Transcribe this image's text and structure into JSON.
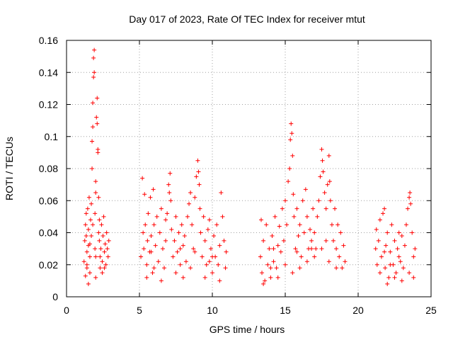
{
  "chart_data": {
    "type": "scatter",
    "title": "Day 017 of 2023, Rate Of TEC Index for receiver mtut",
    "xlabel": "GPS time / hours",
    "ylabel": "ROTI / TECUs",
    "xlim": [
      0,
      25
    ],
    "ylim": [
      0,
      0.16
    ],
    "xticks": [
      0,
      5,
      10,
      15,
      20,
      25
    ],
    "xtick_labels": [
      "0",
      "5",
      "10",
      "15",
      "20",
      "25"
    ],
    "yticks": [
      0,
      0.02,
      0.04,
      0.06,
      0.08,
      0.1,
      0.12,
      0.14,
      0.16
    ],
    "ytick_labels": [
      "0",
      "0.02",
      "0.04",
      "0.06",
      "0.08",
      "0.1",
      "0.12",
      "0.14",
      "0.16"
    ],
    "grid": true,
    "marker": "+",
    "color": "#ff0000",
    "series": [
      {
        "points": [
          [
            1.2,
            0.022
          ],
          [
            1.25,
            0.035
          ],
          [
            1.3,
            0.045
          ],
          [
            1.3,
            0.013
          ],
          [
            1.35,
            0.052
          ],
          [
            1.4,
            0.028
          ],
          [
            1.4,
            0.018
          ],
          [
            1.45,
            0.055
          ],
          [
            1.5,
            0.042
          ],
          [
            1.5,
            0.032
          ],
          [
            1.55,
            0.062
          ],
          [
            1.6,
            0.025
          ],
          [
            1.6,
            0.015
          ],
          [
            1.65,
            0.048
          ],
          [
            1.7,
            0.058
          ],
          [
            1.7,
            0.038
          ],
          [
            1.75,
            0.08
          ],
          [
            1.75,
            0.097
          ],
          [
            1.8,
            0.106
          ],
          [
            1.8,
            0.121
          ],
          [
            1.85,
            0.137
          ],
          [
            1.85,
            0.149
          ],
          [
            1.9,
            0.154
          ],
          [
            1.9,
            0.14
          ],
          [
            1.95,
            0.052
          ],
          [
            1.95,
            0.03
          ],
          [
            2.0,
            0.065
          ],
          [
            2.0,
            0.072
          ],
          [
            2.05,
            0.112
          ],
          [
            2.1,
            0.124
          ],
          [
            2.1,
            0.108
          ],
          [
            2.15,
            0.092
          ],
          [
            2.15,
            0.09
          ],
          [
            2.2,
            0.062
          ],
          [
            2.2,
            0.04
          ],
          [
            2.25,
            0.035
          ],
          [
            2.3,
            0.025
          ],
          [
            2.3,
            0.018
          ],
          [
            2.35,
            0.03
          ],
          [
            2.4,
            0.045
          ],
          [
            2.45,
            0.022
          ],
          [
            2.5,
            0.038
          ],
          [
            2.55,
            0.05
          ],
          [
            2.6,
            0.028
          ],
          [
            2.65,
            0.033
          ],
          [
            2.7,
            0.02
          ],
          [
            2.75,
            0.04
          ],
          [
            2.8,
            0.03
          ],
          [
            2.85,
            0.025
          ],
          [
            2.9,
            0.035
          ],
          [
            1.5,
            0.008
          ],
          [
            2.0,
            0.012
          ],
          [
            1.4,
            0.02
          ],
          [
            1.6,
            0.033
          ],
          [
            1.8,
            0.045
          ],
          [
            2.25,
            0.048
          ],
          [
            2.6,
            0.018
          ],
          [
            2.45,
            0.015
          ],
          [
            2.0,
            0.025
          ],
          [
            1.35,
            0.038
          ],
          [
            5.1,
            0.025
          ],
          [
            5.2,
            0.074
          ],
          [
            5.25,
            0.04
          ],
          [
            5.3,
            0.03
          ],
          [
            5.35,
            0.064
          ],
          [
            5.4,
            0.045
          ],
          [
            5.5,
            0.02
          ],
          [
            5.55,
            0.035
          ],
          [
            5.6,
            0.052
          ],
          [
            5.7,
            0.028
          ],
          [
            5.75,
            0.062
          ],
          [
            5.8,
            0.038
          ],
          [
            5.9,
            0.015
          ],
          [
            5.95,
            0.067
          ],
          [
            6.0,
            0.045
          ],
          [
            6.1,
            0.032
          ],
          [
            6.2,
            0.05
          ],
          [
            6.3,
            0.022
          ],
          [
            6.4,
            0.04
          ],
          [
            6.5,
            0.055
          ],
          [
            6.6,
            0.03
          ],
          [
            6.7,
            0.018
          ],
          [
            6.8,
            0.048
          ],
          [
            6.9,
            0.052
          ],
          [
            7.0,
            0.07
          ],
          [
            7.05,
            0.065
          ],
          [
            7.1,
            0.077
          ],
          [
            7.15,
            0.06
          ],
          [
            7.2,
            0.042
          ],
          [
            7.3,
            0.025
          ],
          [
            7.4,
            0.035
          ],
          [
            7.5,
            0.05
          ],
          [
            7.6,
            0.028
          ],
          [
            7.7,
            0.04
          ],
          [
            7.8,
            0.02
          ],
          [
            7.9,
            0.045
          ],
          [
            8.0,
            0.032
          ],
          [
            8.1,
            0.038
          ],
          [
            8.2,
            0.022
          ],
          [
            8.3,
            0.05
          ],
          [
            8.4,
            0.058
          ],
          [
            8.5,
            0.065
          ],
          [
            8.6,
            0.045
          ],
          [
            8.7,
            0.03
          ],
          [
            8.8,
            0.062
          ],
          [
            8.9,
            0.075
          ],
          [
            9.0,
            0.085
          ],
          [
            9.05,
            0.078
          ],
          [
            9.1,
            0.07
          ],
          [
            9.15,
            0.055
          ],
          [
            9.2,
            0.04
          ],
          [
            9.3,
            0.025
          ],
          [
            9.4,
            0.05
          ],
          [
            9.5,
            0.035
          ],
          [
            9.6,
            0.02
          ],
          [
            9.7,
            0.042
          ],
          [
            9.8,
            0.048
          ],
          [
            9.9,
            0.03
          ],
          [
            10.0,
            0.015
          ],
          [
            10.1,
            0.038
          ],
          [
            10.2,
            0.025
          ],
          [
            10.3,
            0.045
          ],
          [
            10.4,
            0.02
          ],
          [
            10.5,
            0.032
          ],
          [
            10.6,
            0.065
          ],
          [
            10.7,
            0.05
          ],
          [
            10.8,
            0.035
          ],
          [
            10.9,
            0.018
          ],
          [
            10.95,
            0.028
          ],
          [
            5.5,
            0.012
          ],
          [
            6.0,
            0.018
          ],
          [
            6.5,
            0.01
          ],
          [
            7.5,
            0.015
          ],
          [
            8.0,
            0.012
          ],
          [
            8.5,
            0.018
          ],
          [
            9.5,
            0.012
          ],
          [
            10.0,
            0.025
          ],
          [
            10.5,
            0.01
          ],
          [
            6.8,
            0.035
          ],
          [
            7.8,
            0.03
          ],
          [
            8.8,
            0.028
          ],
          [
            9.8,
            0.022
          ],
          [
            5.8,
            0.028
          ],
          [
            13.3,
            0.025
          ],
          [
            13.35,
            0.048
          ],
          [
            13.4,
            0.015
          ],
          [
            13.5,
            0.035
          ],
          [
            13.6,
            0.01
          ],
          [
            13.7,
            0.045
          ],
          [
            13.8,
            0.02
          ],
          [
            13.9,
            0.03
          ],
          [
            14.0,
            0.012
          ],
          [
            14.1,
            0.038
          ],
          [
            14.2,
            0.022
          ],
          [
            14.3,
            0.05
          ],
          [
            14.4,
            0.018
          ],
          [
            14.5,
            0.032
          ],
          [
            14.6,
            0.044
          ],
          [
            14.7,
            0.028
          ],
          [
            14.8,
            0.055
          ],
          [
            14.9,
            0.035
          ],
          [
            15.0,
            0.06
          ],
          [
            15.1,
            0.045
          ],
          [
            15.2,
            0.072
          ],
          [
            15.3,
            0.08
          ],
          [
            15.35,
            0.098
          ],
          [
            15.4,
            0.108
          ],
          [
            15.45,
            0.102
          ],
          [
            15.5,
            0.088
          ],
          [
            15.55,
            0.064
          ],
          [
            15.6,
            0.05
          ],
          [
            15.7,
            0.03
          ],
          [
            15.8,
            0.055
          ],
          [
            15.9,
            0.038
          ],
          [
            16.0,
            0.045
          ],
          [
            16.1,
            0.025
          ],
          [
            16.2,
            0.06
          ],
          [
            16.3,
            0.04
          ],
          [
            16.4,
            0.067
          ],
          [
            16.5,
            0.05
          ],
          [
            16.6,
            0.03
          ],
          [
            16.7,
            0.042
          ],
          [
            16.8,
            0.035
          ],
          [
            16.9,
            0.055
          ],
          [
            17.0,
            0.04
          ],
          [
            17.1,
            0.03
          ],
          [
            17.2,
            0.05
          ],
          [
            17.3,
            0.06
          ],
          [
            17.4,
            0.075
          ],
          [
            17.5,
            0.092
          ],
          [
            17.55,
            0.085
          ],
          [
            17.6,
            0.078
          ],
          [
            17.7,
            0.065
          ],
          [
            17.8,
            0.055
          ],
          [
            17.9,
            0.07
          ],
          [
            18.0,
            0.088
          ],
          [
            18.05,
            0.072
          ],
          [
            18.1,
            0.06
          ],
          [
            18.2,
            0.045
          ],
          [
            18.3,
            0.035
          ],
          [
            18.4,
            0.055
          ],
          [
            18.5,
            0.03
          ],
          [
            18.6,
            0.045
          ],
          [
            18.7,
            0.025
          ],
          [
            18.8,
            0.04
          ],
          [
            18.9,
            0.018
          ],
          [
            19.0,
            0.032
          ],
          [
            19.1,
            0.022
          ],
          [
            13.5,
            0.008
          ],
          [
            14.0,
            0.018
          ],
          [
            14.5,
            0.012
          ],
          [
            15.0,
            0.02
          ],
          [
            15.5,
            0.015
          ],
          [
            16.0,
            0.018
          ],
          [
            16.5,
            0.022
          ],
          [
            17.0,
            0.025
          ],
          [
            17.5,
            0.03
          ],
          [
            18.0,
            0.022
          ],
          [
            18.5,
            0.018
          ],
          [
            14.2,
            0.03
          ],
          [
            15.8,
            0.028
          ],
          [
            16.8,
            0.03
          ],
          [
            17.8,
            0.035
          ],
          [
            21.2,
            0.03
          ],
          [
            21.25,
            0.042
          ],
          [
            21.3,
            0.02
          ],
          [
            21.4,
            0.035
          ],
          [
            21.5,
            0.048
          ],
          [
            21.6,
            0.025
          ],
          [
            21.7,
            0.052
          ],
          [
            21.8,
            0.055
          ],
          [
            21.85,
            0.018
          ],
          [
            21.9,
            0.032
          ],
          [
            22.0,
            0.04
          ],
          [
            22.1,
            0.012
          ],
          [
            22.2,
            0.028
          ],
          [
            22.3,
            0.045
          ],
          [
            22.4,
            0.02
          ],
          [
            22.5,
            0.035
          ],
          [
            22.6,
            0.015
          ],
          [
            22.7,
            0.03
          ],
          [
            22.8,
            0.04
          ],
          [
            22.9,
            0.022
          ],
          [
            23.0,
            0.038
          ],
          [
            23.1,
            0.018
          ],
          [
            23.2,
            0.032
          ],
          [
            23.3,
            0.045
          ],
          [
            23.4,
            0.055
          ],
          [
            23.5,
            0.062
          ],
          [
            23.55,
            0.065
          ],
          [
            23.6,
            0.058
          ],
          [
            23.7,
            0.04
          ],
          [
            23.8,
            0.025
          ],
          [
            23.9,
            0.03
          ],
          [
            21.5,
            0.015
          ],
          [
            22.0,
            0.008
          ],
          [
            22.5,
            0.012
          ],
          [
            23.0,
            0.01
          ],
          [
            23.5,
            0.015
          ],
          [
            21.8,
            0.028
          ],
          [
            22.8,
            0.025
          ],
          [
            23.8,
            0.012
          ],
          [
            22.2,
            0.02
          ]
        ]
      }
    ]
  }
}
